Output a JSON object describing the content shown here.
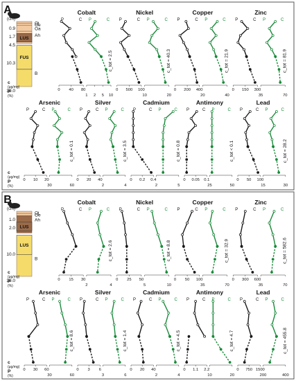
{
  "colors": {
    "black_series": "#1a1a1a",
    "green_series": "#1a8a3a",
    "frame": "#555555",
    "soil_oi": "#f2c9a0",
    "soil_oe": "#f2c9a0",
    "soil_oa": "#f2c9a0",
    "soil_ah": "#f2c9a0",
    "soil_lus": "#9a6a48",
    "soil_fus": "#f5dc6a"
  },
  "panels": [
    {
      "letter": "A",
      "depth_unit": "(cm)",
      "depth_ticks": [
        "0.9",
        "1.7",
        "4.5",
        "10.3",
        "30.0"
      ],
      "horizons": [
        {
          "name": "Oi",
          "top": 0,
          "bottom": 0.9,
          "color_key": "soil_oi"
        },
        {
          "name": "Oe",
          "top": 0.9,
          "bottom": 1.7,
          "color_key": "soil_oe"
        },
        {
          "name": "Oa",
          "top": 1.7,
          "bottom": 4.5,
          "color_key": "soil_oa"
        },
        {
          "name": "Ah",
          "top": 4.5,
          "bottom": 10.3,
          "color_key": "soil_ah"
        },
        {
          "name": "LUS",
          "top": 5.5,
          "bottom": 9.5,
          "color_key": "soil_lus",
          "boxed": true
        },
        {
          "name": "FUS",
          "top": 11,
          "bottom": 22,
          "color_key": "soil_fus",
          "boxed": true
        },
        {
          "name": "B",
          "top": 22,
          "bottom": 30,
          "color_key": "soil_fus"
        }
      ],
      "axis_label_black": "c",
      "axis_label_black_unit": "(μg/mg)",
      "axis_label_green": "P",
      "axis_label_green_unit": "(%)",
      "rows": [
        [
          {
            "element": "Cobalt",
            "ctot": "c_tot = 2.5",
            "black_ticks": [
              "0",
              "40",
              "80"
            ],
            "green_ticks": [
              "1",
              "2",
              "5",
              "10"
            ],
            "black_solid": [
              0.1,
              0.45,
              0.2,
              0.3,
              0.55,
              0.7
            ],
            "black_dash": [
              0.55,
              0.75,
              0.9
            ],
            "green_solid": [
              0.35,
              0.2,
              0.45,
              0.1,
              0.35,
              0.6
            ],
            "green_dash": [
              0.6,
              0.8,
              0.9
            ]
          },
          {
            "element": "Nickel",
            "ctot": "c_tot = 40.3",
            "black_ticks": [
              "0",
              "500",
              "100"
            ],
            "green_ticks": [
              "10",
              "20"
            ],
            "black_solid": [
              0.35,
              0.2,
              0.5,
              0.15,
              0.3,
              0.45
            ],
            "black_dash": [
              0.45,
              0.7,
              0.9
            ],
            "green_solid": [
              0.35,
              0.55,
              0.3,
              0.2,
              0.5,
              0.6
            ],
            "green_dash": [
              0.6,
              0.75,
              0.85
            ]
          },
          {
            "element": "Copper",
            "ctot": "c_tot = 21.9",
            "black_ticks": [
              "0",
              "200",
              "400"
            ],
            "green_ticks": [
              "20",
              "40"
            ],
            "black_solid": [
              0.45,
              0.55,
              0.2,
              0.35,
              0.5,
              0.6
            ],
            "black_dash": [
              0.6,
              0.8,
              0.9
            ],
            "green_solid": [
              0.6,
              0.35,
              0.55,
              0.3,
              0.45,
              0.55
            ],
            "green_dash": [
              0.55,
              0.75,
              0.85
            ]
          },
          {
            "element": "Zinc",
            "ctot": "c_tot = 81.9",
            "black_ticks": [
              "0",
              "150",
              "300"
            ],
            "green_ticks": [
              "35",
              "70"
            ],
            "black_solid": [
              0.35,
              0.6,
              0.3,
              0.2,
              0.45,
              0.55
            ],
            "black_dash": [
              0.55,
              0.7,
              0.9
            ],
            "green_solid": [
              0.6,
              0.35,
              0.5,
              0.25,
              0.45,
              0.6
            ],
            "green_dash": [
              0.6,
              0.75,
              0.8
            ]
          }
        ],
        [
          {
            "element": "Arsenic",
            "ctot": "c_tot = 0.1",
            "black_ticks": [
              "0",
              "10",
              "20"
            ],
            "green_ticks": [
              "30",
              "60"
            ],
            "black_solid": [
              0.5,
              0.3,
              0.6,
              0.45,
              0.4,
              0.35
            ],
            "black_dash": [
              0.35,
              0.6,
              0.85
            ],
            "green_solid": [
              0.25,
              0.45,
              0.2,
              0.55,
              0.35,
              0.35
            ],
            "green_dash": [
              0.35,
              0.45,
              0.4
            ]
          },
          {
            "element": "Silver",
            "ctot": "c_tot = 3.5",
            "black_ticks": [
              "0",
              "20",
              "40"
            ],
            "green_ticks": [
              "2",
              "4"
            ],
            "black_solid": [
              0.5,
              0.35,
              0.55,
              0.3,
              0.45,
              0.4
            ],
            "black_dash": [
              0.4,
              0.55,
              0.75
            ],
            "green_solid": [
              0.5,
              0.3,
              0.55,
              0.4,
              0.35,
              0.45
            ],
            "green_dash": [
              0.45,
              0.55,
              0.65
            ]
          },
          {
            "element": "Cadmium",
            "ctot": "c_tot = 0.8",
            "black_ticks": [
              "0",
              "0.2",
              "0.4"
            ],
            "green_ticks": [
              "2",
              "5"
            ],
            "black_solid": [
              0.1,
              0.1,
              0.1,
              0.1,
              0.1,
              0.1
            ],
            "black_dash": [
              0.1,
              0.5,
              0.9
            ],
            "green_solid": [
              0.75,
              0.4,
              0.35,
              0.3,
              0.3,
              0.3
            ],
            "green_dash": [
              0.3,
              0.3,
              0.3
            ]
          },
          {
            "element": "Antimony",
            "ctot": "c_tot < 0.1",
            "black_ticks": [
              "0",
              "0.05",
              "0.1"
            ],
            "green_ticks": [
              "25",
              "50"
            ],
            "black_solid": [
              0.55,
              0.3,
              0.5,
              0.2,
              0.15,
              0.1
            ],
            "black_dash": [
              0.1,
              0.1,
              0.1
            ],
            "green_solid": [
              0.1,
              0.1,
              0.1,
              0.1,
              0.1,
              0.1
            ],
            "green_dash": [
              0.1,
              0.1,
              0.1
            ]
          },
          {
            "element": "Lead",
            "ctot": "c_tot = 28.2",
            "black_ticks": [
              "0",
              "50",
              "100"
            ],
            "green_ticks": [
              "15",
              "30"
            ],
            "black_solid": [
              0.55,
              0.3,
              0.5,
              0.35,
              0.4,
              0.45
            ],
            "black_dash": [
              0.45,
              0.7,
              0.9
            ],
            "green_solid": [
              0.6,
              0.35,
              0.5,
              0.3,
              0.4,
              0.45
            ],
            "green_dash": [
              0.45,
              0.6,
              0.7
            ]
          }
        ]
      ]
    },
    {
      "letter": "B",
      "depth_unit": "(cm)",
      "depth_ticks": [
        "1.0",
        "2.0",
        "10.0",
        "30.0"
      ],
      "horizons": [
        {
          "name": "Oi",
          "top": 0,
          "bottom": 1.0,
          "color_key": "soil_oi"
        },
        {
          "name": "Oe",
          "top": 1.0,
          "bottom": 2.0,
          "color_key": "soil_oe"
        },
        {
          "name": "Ah",
          "top": 2.0,
          "bottom": 10.0,
          "color_key": "soil_lus"
        },
        {
          "name": "LUS",
          "top": 5,
          "bottom": 9,
          "color_key": "soil_lus",
          "boxed": true
        },
        {
          "name": "LUS",
          "top": 11,
          "bottom": 20,
          "color_key": "soil_fus",
          "boxed": true
        },
        {
          "name": "B",
          "top": 20,
          "bottom": 30,
          "color_key": "soil_fus"
        }
      ],
      "axis_label_black": "c",
      "axis_label_black_unit": "(μg/mg)",
      "axis_label_green": "P",
      "axis_label_green_unit": "(%)",
      "rows": [
        [
          {
            "element": "Cobalt",
            "ctot": "c_tot = 2.6",
            "black_ticks": [
              "0",
              "15",
              "30"
            ],
            "green_ticks": [
              "2",
              "4"
            ],
            "black_solid": [
              0.2,
              0.35,
              0.55,
              0.7
            ],
            "black_dash": [
              0.7,
              0.3,
              0.2
            ],
            "green_solid": [
              0.6,
              0.45,
              0.55,
              0.7
            ],
            "green_dash": [
              0.7,
              0.5,
              0.45
            ]
          },
          {
            "element": "Nickel",
            "ctot": "c_tot = 8.8",
            "black_ticks": [
              "0",
              "25",
              "50"
            ],
            "green_ticks": [
              "5",
              "10"
            ],
            "black_solid": [
              0.2,
              0.3,
              0.35,
              0.4
            ],
            "black_dash": [
              0.4,
              0.4,
              0.4
            ],
            "green_solid": [
              0.3,
              0.4,
              0.55,
              0.7
            ],
            "green_dash": [
              0.7,
              0.8,
              0.9
            ]
          },
          {
            "element": "Copper",
            "ctot": "c_tot = 32.9",
            "black_ticks": [
              "0",
              "50",
              "100"
            ],
            "green_ticks": [
              "35",
              "70"
            ],
            "black_solid": [
              0.7,
              0.5,
              0.3,
              0.35
            ],
            "black_dash": [
              0.35,
              0.5,
              0.8
            ],
            "green_solid": [
              0.4,
              0.3,
              0.45,
              0.6
            ],
            "green_dash": [
              0.6,
              0.5,
              0.4
            ]
          },
          {
            "element": "Zinc",
            "ctot": "c_tot = 582.6",
            "black_ticks": [
              "0",
              "300",
              "600"
            ],
            "green_ticks": [
              "35",
              "70"
            ],
            "black_solid": [
              0.5,
              0.4,
              0.3,
              0.35
            ],
            "black_dash": [
              0.35,
              0.55,
              0.8
            ],
            "green_solid": [
              0.55,
              0.35,
              0.5,
              0.6
            ],
            "green_dash": [
              0.6,
              0.5,
              0.45
            ]
          }
        ],
        [
          {
            "element": "Arsenic",
            "ctot": "c_tot = 8.6",
            "black_ticks": [
              "0",
              "30",
              "60"
            ],
            "green_ticks": [
              "30",
              "60"
            ],
            "black_solid": [
              0.4,
              0.5,
              0.6,
              0.2
            ],
            "black_dash": [
              0.2,
              0.3,
              0.4
            ],
            "green_solid": [
              0.45,
              0.55,
              0.7,
              0.8
            ],
            "green_dash": [
              0.8,
              0.75,
              0.7
            ]
          },
          {
            "element": "Silver",
            "ctot": "c_tot = 1.4",
            "black_ticks": [
              "0",
              "3",
              "6"
            ],
            "green_ticks": [
              "3",
              "6"
            ],
            "black_solid": [
              0.3,
              0.25,
              0.35,
              0.4
            ],
            "black_dash": [
              0.4,
              0.55,
              0.7
            ],
            "green_solid": [
              0.5,
              0.4,
              0.5,
              0.55
            ],
            "green_dash": [
              0.55,
              0.65,
              0.75
            ]
          },
          {
            "element": "Cadmium",
            "ctot": "c_tot = 4.5",
            "black_ticks": [
              "0",
              "20",
              "40"
            ],
            "green_ticks": [
              "2",
              "4"
            ],
            "black_solid": [
              0.45,
              0.3,
              0.5,
              0.35
            ],
            "black_dash": [
              0.35,
              0.5,
              0.55
            ],
            "green_solid": [
              0.3,
              0.55,
              0.4,
              0.6
            ],
            "green_dash": [
              0.6,
              0.75,
              0.85
            ]
          },
          {
            "element": "Antimony",
            "ctot": "c_tot = 4.7",
            "black_ticks": [
              "0",
              "1.1",
              "2.2"
            ],
            "green_ticks": [
              "10",
              "20"
            ],
            "black_solid": [
              0.5,
              0.45,
              0.6,
              0.9
            ],
            "black_dash": [
              0.2,
              0.15,
              0.1
            ],
            "green_solid": [
              0.15,
              0.15,
              0.15,
              0.15
            ],
            "green_dash": [
              0.15,
              0.5,
              0.9
            ]
          },
          {
            "element": "Lead",
            "ctot": "c_tot = 455.8",
            "black_ticks": [
              "0",
              "750",
              "1500"
            ],
            "green_ticks": [
              "200",
              "400"
            ],
            "black_solid": [
              0.3,
              0.5,
              0.45,
              0.6
            ],
            "black_dash": [
              0.6,
              0.4,
              0.3
            ],
            "green_solid": [
              0.45,
              0.55,
              0.4,
              0.6
            ],
            "green_dash": [
              0.6,
              0.45,
              0.3
            ]
          }
        ]
      ]
    }
  ],
  "column_header_black": "P",
  "column_header_black_sub": "t",
  "column_header_conc": "C",
  "column_header_conc_sub": "t"
}
